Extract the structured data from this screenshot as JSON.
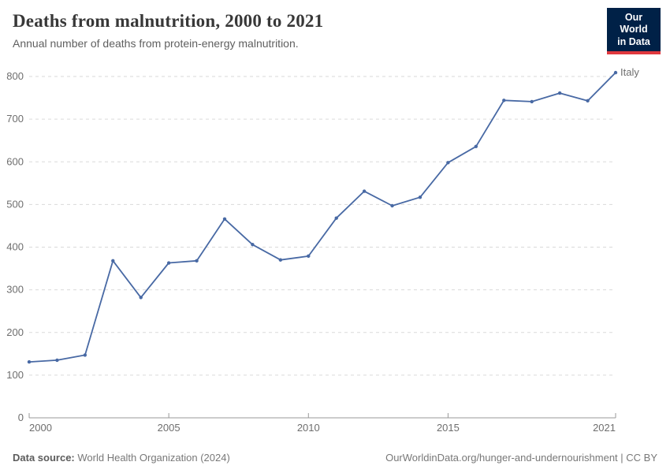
{
  "header": {
    "title": "Deaths from malnutrition, 2000 to 2021",
    "subtitle": "Annual number of deaths from protein-energy malnutrition.",
    "logo": {
      "line1": "Our World",
      "line2": "in Data",
      "bg_color": "#002147",
      "accent_color": "#e0383e"
    }
  },
  "chart_data": {
    "type": "line",
    "title": "Deaths from malnutrition, 2000 to 2021",
    "xlabel": "",
    "ylabel": "",
    "x": [
      2000,
      2001,
      2002,
      2003,
      2004,
      2005,
      2006,
      2007,
      2008,
      2009,
      2010,
      2011,
      2012,
      2013,
      2014,
      2015,
      2016,
      2017,
      2018,
      2019,
      2020,
      2021
    ],
    "series": [
      {
        "name": "Italy",
        "color": "#4869a4",
        "values": [
          131,
          135,
          147,
          368,
          282,
          363,
          368,
          466,
          406,
          370,
          379,
          468,
          531,
          497,
          517,
          598,
          636,
          744,
          741,
          761,
          743,
          809
        ]
      }
    ],
    "ylim": [
      0,
      800
    ],
    "y_ticks": [
      0,
      100,
      200,
      300,
      400,
      500,
      600,
      700,
      800
    ],
    "x_ticks": [
      2000,
      2005,
      2010,
      2015,
      2021
    ],
    "grid": "horizontal-dashed",
    "grid_color": "#dadada",
    "axis_color": "#999999",
    "legend": "inline-end-label"
  },
  "footer": {
    "source_label": "Data source:",
    "source_value": "World Health Organization (2024)",
    "attribution": "OurWorldinData.org/hunger-and-undernourishment | CC BY"
  }
}
